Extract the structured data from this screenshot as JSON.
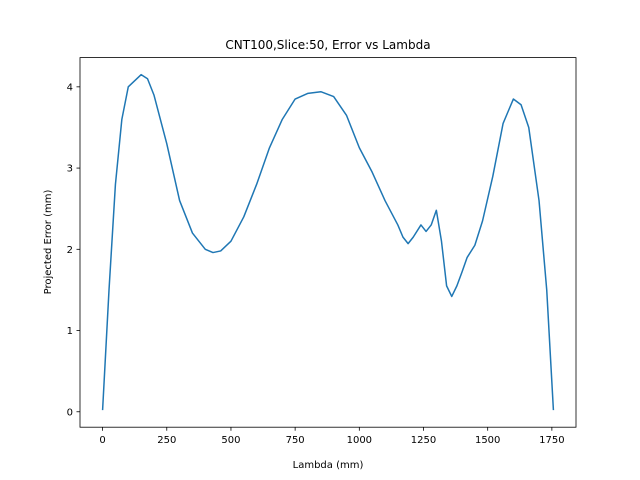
{
  "chart_data": {
    "type": "line",
    "title": "CNT100,Slice:50, Error vs Lambda",
    "xlabel": "Lambda (mm)",
    "ylabel": "Projected Error (mm)",
    "x": [
      0,
      25,
      50,
      75,
      100,
      150,
      175,
      200,
      250,
      300,
      350,
      400,
      430,
      460,
      500,
      550,
      600,
      650,
      700,
      750,
      800,
      850,
      900,
      950,
      1000,
      1050,
      1100,
      1150,
      1170,
      1190,
      1210,
      1240,
      1260,
      1280,
      1300,
      1320,
      1340,
      1360,
      1380,
      1400,
      1420,
      1450,
      1480,
      1520,
      1560,
      1600,
      1630,
      1660,
      1700,
      1730,
      1756
    ],
    "series": [
      {
        "name": "Projected Error",
        "color": "#1f77b4",
        "values": [
          0.02,
          1.5,
          2.8,
          3.6,
          4.0,
          4.15,
          4.1,
          3.9,
          3.3,
          2.6,
          2.2,
          2.0,
          1.96,
          1.98,
          2.1,
          2.4,
          2.8,
          3.25,
          3.6,
          3.85,
          3.92,
          3.94,
          3.88,
          3.65,
          3.25,
          2.95,
          2.6,
          2.3,
          2.15,
          2.07,
          2.15,
          2.3,
          2.22,
          2.3,
          2.48,
          2.1,
          1.55,
          1.42,
          1.55,
          1.72,
          1.9,
          2.05,
          2.35,
          2.9,
          3.55,
          3.85,
          3.78,
          3.5,
          2.6,
          1.5,
          0.02
        ]
      }
    ],
    "xlim": [
      -88,
      1844
    ],
    "ylim": [
      -0.19,
      4.36
    ],
    "xticks": [
      0,
      250,
      500,
      750,
      1000,
      1250,
      1500,
      1750
    ],
    "yticks": [
      0,
      1,
      2,
      3,
      4
    ],
    "grid": false
  }
}
